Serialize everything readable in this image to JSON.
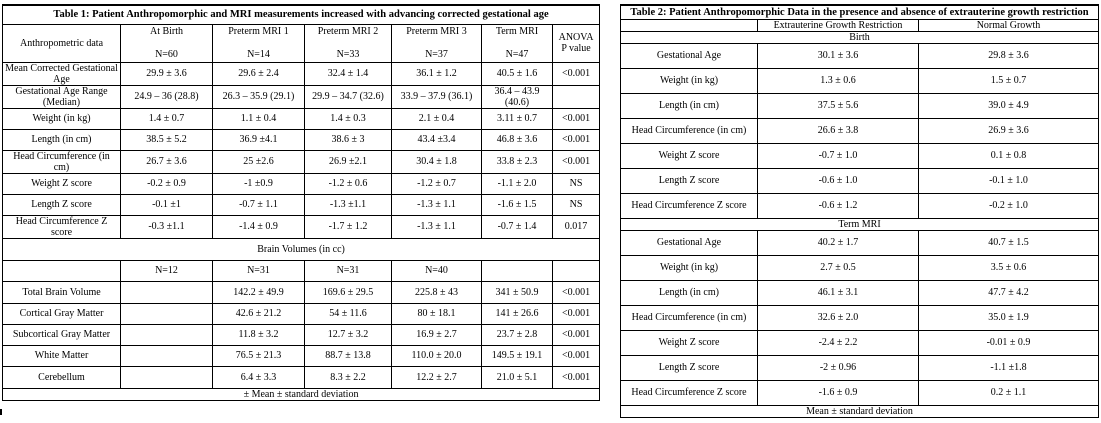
{
  "table1": {
    "title": "Table 1: Patient Anthropomorphic and MRI measurements increased with advancing corrected gestational age",
    "header": {
      "label": "Anthropometric data",
      "columns": [
        {
          "name": "At Birth",
          "n": "N=60"
        },
        {
          "name": "Preterm MRI 1",
          "n": "N=14"
        },
        {
          "name": "Preterm MRI 2",
          "n": "N=33"
        },
        {
          "name": "Preterm MRI 3",
          "n": "N=37"
        },
        {
          "name": "Term MRI",
          "n": "N=47"
        }
      ],
      "anova_line1": "ANOVA",
      "anova_line2": "P value"
    },
    "rows": [
      {
        "label": "Mean Corrected Gestational Age",
        "values": [
          "29.9 ± 3.6",
          "29.6 ± 2.4",
          "32.4 ± 1.4",
          "36.1 ± 1.2",
          "40.5 ± 1.6"
        ],
        "p": "<0.001"
      },
      {
        "label": "Gestational Age Range (Median)",
        "values": [
          "24.9 – 36 (28.8)",
          "26.3 – 35.9 (29.1)",
          "29.9 – 34.7 (32.6)",
          "33.9 – 37.9 (36.1)",
          "36.4 – 43.9 (40.6)"
        ],
        "p": ""
      },
      {
        "label": "Weight (in kg)",
        "values": [
          "1.4 ± 0.7",
          "1.1 ± 0.4",
          "1.4 ± 0.3",
          "2.1 ± 0.4",
          "3.11 ± 0.7"
        ],
        "p": "<0.001"
      },
      {
        "label": "Length (in cm)",
        "values": [
          "38.5 ± 5.2",
          "36.9 ±4.1",
          "38.6 ± 3",
          "43.4 ±3.4",
          "46.8 ± 3.6"
        ],
        "p": "<0.001"
      },
      {
        "label": "Head Circumference (in cm)",
        "values": [
          "26.7 ± 3.6",
          "25 ±2.6",
          "26.9 ±2.1",
          "30.4 ± 1.8",
          "33.8 ± 2.3"
        ],
        "p": "<0.001"
      },
      {
        "label": "Weight Z score",
        "values": [
          "-0.2 ± 0.9",
          "-1 ±0.9",
          "-1.2 ± 0.6",
          "-1.2 ± 0.7",
          "-1.1 ± 2.0"
        ],
        "p": "NS"
      },
      {
        "label": "Length Z score",
        "values": [
          "-0.1 ±1",
          "-0.7 ± 1.1",
          "-1.3 ±1.1",
          "-1.3 ± 1.1",
          "-1.6 ± 1.5"
        ],
        "p": "NS"
      },
      {
        "label": "Head Circumference Z score",
        "values": [
          "-0.3 ±1.1",
          "-1.4 ± 0.9",
          "-1.7 ± 1.2",
          "-1.3 ± 1.1",
          "-0.7 ± 1.4"
        ],
        "p": "0.017"
      }
    ],
    "brain_section_title": "Brain Volumes (in cc)",
    "brain_ns": [
      "N=12",
      "N=31",
      "N=31",
      "N=40"
    ],
    "brain_rows": [
      {
        "label": "Total Brain Volume",
        "values": [
          "142.2 ± 49.9",
          "169.6 ± 29.5",
          "225.8 ± 43",
          "341 ± 50.9"
        ],
        "p": "<0.001"
      },
      {
        "label": "Cortical Gray Matter",
        "values": [
          "42.6 ± 21.2",
          "54 ± 11.6",
          "80 ± 18.1",
          "141 ± 26.6"
        ],
        "p": "<0.001"
      },
      {
        "label": "Subcortical Gray Matter",
        "values": [
          "11.8 ± 3.2",
          "12.7 ± 3.2",
          "16.9 ± 2.7",
          "23.7 ± 2.8"
        ],
        "p": "<0.001"
      },
      {
        "label": "White Matter",
        "values": [
          "76.5 ± 21.3",
          "88.7 ± 13.8",
          "110.0 ± 20.0",
          "149.5 ± 19.1"
        ],
        "p": "<0.001"
      },
      {
        "label": "Cerebellum",
        "values": [
          "6.4 ± 3.3",
          "8.3 ± 2.2",
          "12.2 ± 2.7",
          "21.0 ± 5.1"
        ],
        "p": "<0.001"
      }
    ],
    "footer": "± Mean ± standard deviation"
  },
  "table2": {
    "title": "Table 2: Patient Anthropomorphic Data in the presence and absence of extrauterine growth restriction",
    "columns": [
      "Extrauterine Growth Restriction",
      "Normal Growth"
    ],
    "birth_title": "Birth",
    "birth_rows": [
      {
        "label": "Gestational Age",
        "values": [
          "30.1 ± 3.6",
          "29.8 ± 3.6"
        ]
      },
      {
        "label": "Weight (in kg)",
        "values": [
          "1.3 ± 0.6",
          "1.5 ± 0.7"
        ]
      },
      {
        "label": "Length (in cm)",
        "values": [
          "37.5 ± 5.6",
          "39.0 ± 4.9"
        ]
      },
      {
        "label": "Head Circumference (in cm)",
        "values": [
          "26.6 ± 3.8",
          "26.9 ± 3.6"
        ]
      },
      {
        "label": "Weight Z score",
        "values": [
          "-0.7 ± 1.0",
          "0.1 ± 0.8"
        ]
      },
      {
        "label": "Length Z score",
        "values": [
          "-0.6 ± 1.0",
          "-0.1 ± 1.0"
        ]
      },
      {
        "label": "Head Circumference Z score",
        "values": [
          "-0.6 ± 1.2",
          "-0.2 ± 1.0"
        ]
      }
    ],
    "term_title": "Term MRI",
    "term_rows": [
      {
        "label": "Gestational Age",
        "values": [
          "40.2 ± 1.7",
          "40.7 ± 1.5"
        ]
      },
      {
        "label": "Weight (in kg)",
        "values": [
          "2.7 ± 0.5",
          "3.5 ± 0.6"
        ]
      },
      {
        "label": "Length (in cm)",
        "values": [
          "46.1 ± 3.1",
          "47.7 ± 4.2"
        ]
      },
      {
        "label": "Head Circumference (in cm)",
        "values": [
          "32.6 ± 2.0",
          "35.0 ± 1.9"
        ]
      },
      {
        "label": "Weight Z score",
        "values": [
          "-2.4 ± 2.2",
          "-0.01 ± 0.9"
        ]
      },
      {
        "label": "Length Z score",
        "values": [
          "-2 ± 0.96",
          "-1.1 ±1.8"
        ]
      },
      {
        "label": "Head Circumference Z score",
        "values": [
          "-1.6 ± 0.9",
          "0.2 ± 1.1"
        ]
      }
    ],
    "footer": "Mean ± standard deviation"
  }
}
